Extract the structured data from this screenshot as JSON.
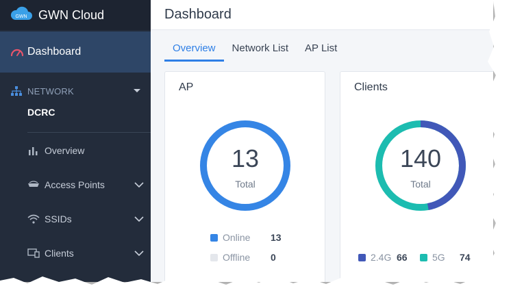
{
  "app": {
    "brand_logo_text": "GWN",
    "brand_name": "GWN Cloud"
  },
  "sidebar": {
    "dashboard_label": "Dashboard",
    "network_section": "NETWORK",
    "site_name": "DCRC",
    "items": [
      {
        "label": "Overview",
        "icon": "bar-chart-icon",
        "expandable": false
      },
      {
        "label": "Access Points",
        "icon": "access-point-icon",
        "expandable": true
      },
      {
        "label": "SSIDs",
        "icon": "wifi-icon",
        "expandable": true
      },
      {
        "label": "Clients",
        "icon": "devices-icon",
        "expandable": true
      }
    ]
  },
  "header": {
    "title": "Dashboard"
  },
  "tabs": [
    {
      "label": "Overview",
      "active": true
    },
    {
      "label": "Network List",
      "active": false
    },
    {
      "label": "AP List",
      "active": false
    }
  ],
  "ap_card": {
    "title": "AP",
    "total": "13",
    "total_label": "Total",
    "legend": [
      {
        "label": "Online",
        "value": "13",
        "color": "#3585e5"
      },
      {
        "label": "Offline",
        "value": "0",
        "color": "#e4e7ec"
      }
    ]
  },
  "clients_card": {
    "title": "Clients",
    "total": "140",
    "total_label": "Total",
    "legend": [
      {
        "label": "2.4G",
        "value": "66",
        "color": "#4158b8"
      },
      {
        "label": "5G",
        "value": "74",
        "color": "#1cbcb0"
      }
    ]
  },
  "colors": {
    "sidebar_bg": "#232c3b",
    "sidebar_active": "#2e4667",
    "accent": "#2e7fe6"
  }
}
